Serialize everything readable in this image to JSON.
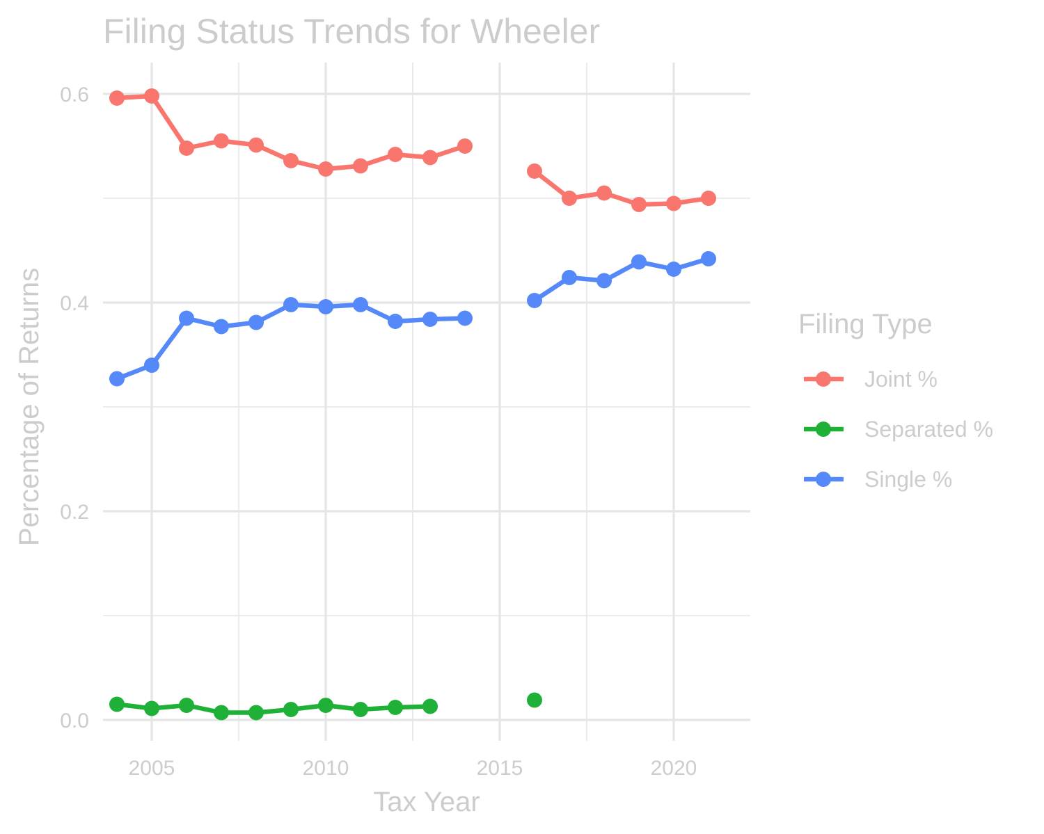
{
  "chart_data": {
    "type": "line",
    "title": "Filing Status Trends for Wheeler",
    "xlabel": "Tax Year",
    "ylabel": "Percentage of Returns",
    "xlim": [
      2003.6,
      2022.2
    ],
    "ylim": [
      -0.02,
      0.63
    ],
    "x_ticks": [
      2005,
      2010,
      2015,
      2020
    ],
    "x_tick_labels": [
      "2005",
      "2010",
      "2015",
      "2020"
    ],
    "y_ticks": [
      0.0,
      0.2,
      0.4,
      0.6
    ],
    "y_tick_labels": [
      "0.0",
      "0.2",
      "0.4",
      "0.6"
    ],
    "grid": true,
    "legend": {
      "title": "Filing Type",
      "position": "right"
    },
    "series": [
      {
        "name": "Joint %",
        "color": "#F8766D",
        "points": [
          [
            2004,
            0.596
          ],
          [
            2005,
            0.598
          ],
          [
            2006,
            0.548
          ],
          [
            2007,
            0.555
          ],
          [
            2008,
            0.551
          ],
          [
            2009,
            0.536
          ],
          [
            2010,
            0.528
          ],
          [
            2011,
            0.531
          ],
          [
            2012,
            0.542
          ],
          [
            2013,
            0.539
          ],
          [
            2014,
            0.55
          ],
          [
            2016,
            0.526
          ],
          [
            2017,
            0.5
          ],
          [
            2018,
            0.505
          ],
          [
            2019,
            0.494
          ],
          [
            2020,
            0.495
          ],
          [
            2021,
            0.5
          ]
        ]
      },
      {
        "name": "Separated %",
        "color": "#1EB037",
        "points": [
          [
            2004,
            0.015
          ],
          [
            2005,
            0.011
          ],
          [
            2006,
            0.014
          ],
          [
            2007,
            0.007
          ],
          [
            2008,
            0.007
          ],
          [
            2009,
            0.01
          ],
          [
            2010,
            0.014
          ],
          [
            2011,
            0.01
          ],
          [
            2012,
            0.012
          ],
          [
            2013,
            0.013
          ],
          [
            2016,
            0.019
          ]
        ]
      },
      {
        "name": "Single %",
        "color": "#5588F8",
        "points": [
          [
            2004,
            0.327
          ],
          [
            2005,
            0.34
          ],
          [
            2006,
            0.385
          ],
          [
            2007,
            0.377
          ],
          [
            2008,
            0.381
          ],
          [
            2009,
            0.398
          ],
          [
            2010,
            0.396
          ],
          [
            2011,
            0.398
          ],
          [
            2012,
            0.382
          ],
          [
            2013,
            0.384
          ],
          [
            2014,
            0.385
          ],
          [
            2016,
            0.402
          ],
          [
            2017,
            0.424
          ],
          [
            2018,
            0.421
          ],
          [
            2019,
            0.439
          ],
          [
            2020,
            0.432
          ],
          [
            2021,
            0.442
          ]
        ]
      }
    ]
  }
}
